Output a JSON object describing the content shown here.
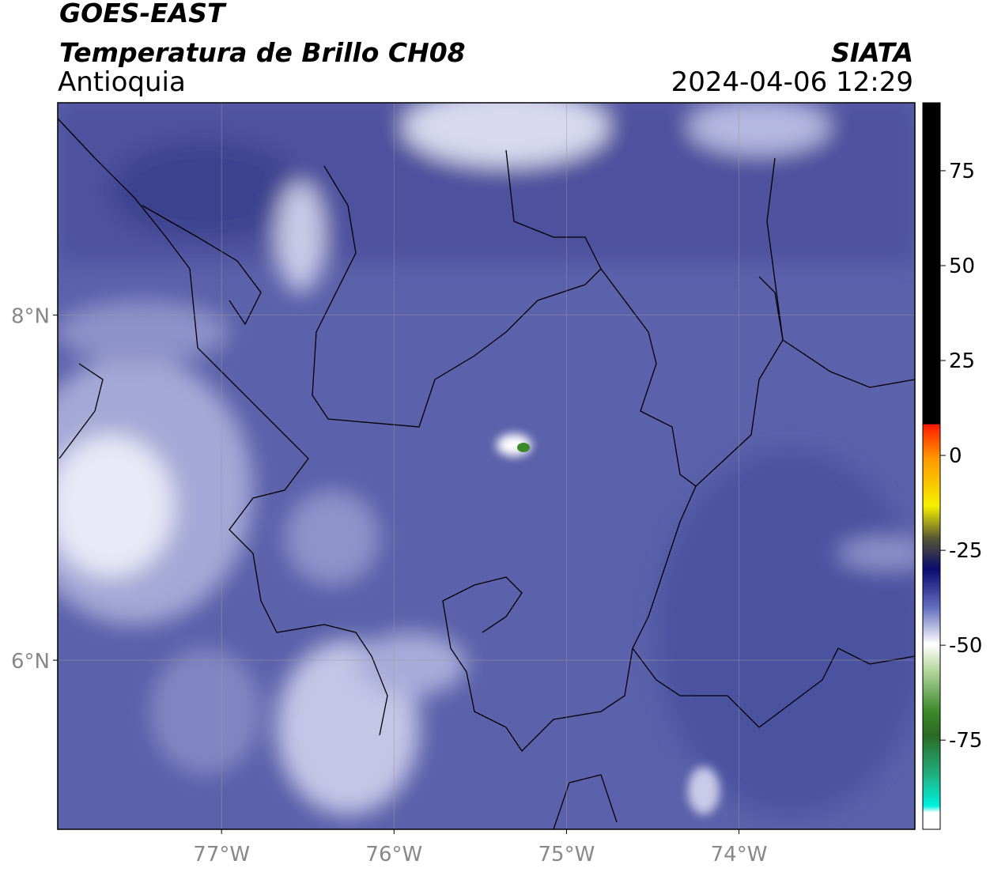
{
  "header": {
    "satellite": "GOES-EAST",
    "product": "Temperatura de Brillo CH08",
    "region": "Antioquia",
    "source": "SIATA",
    "datetime": "2024-04-06 12:29"
  },
  "map": {
    "xlim": [
      -77.95,
      -72.98
    ],
    "ylim": [
      5.02,
      9.23
    ],
    "xticks": [
      {
        "value": -77,
        "label": "77°W"
      },
      {
        "value": -76,
        "label": "76°W"
      },
      {
        "value": -75,
        "label": "75°W"
      },
      {
        "value": -74,
        "label": "74°W"
      }
    ],
    "yticks": [
      {
        "value": 6,
        "label": "6°N"
      },
      {
        "value": 8,
        "label": "8°N"
      }
    ],
    "grid": true
  },
  "colorbar": {
    "range": [
      -98.5,
      92.9
    ],
    "ticks": [
      75,
      50,
      25,
      0,
      -25,
      -50,
      -75
    ]
  }
}
